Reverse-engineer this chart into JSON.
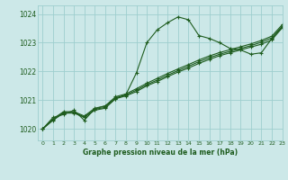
{
  "title": "Graphe pression niveau de la mer (hPa)",
  "bg_color": "#cce8e8",
  "grid_color": "#9ecece",
  "line_color": "#1e5c1e",
  "xlim": [
    -0.5,
    23
  ],
  "ylim": [
    1019.6,
    1024.3
  ],
  "yticks": [
    1020,
    1021,
    1022,
    1023,
    1024
  ],
  "xticks": [
    0,
    1,
    2,
    3,
    4,
    5,
    6,
    7,
    8,
    9,
    10,
    11,
    12,
    13,
    14,
    15,
    16,
    17,
    18,
    19,
    20,
    21,
    22,
    23
  ],
  "figsize": [
    3.2,
    2.0
  ],
  "dpi": 100,
  "series": [
    [
      1020.0,
      1020.4,
      1020.5,
      1020.65,
      1020.3,
      1020.7,
      1020.8,
      1021.05,
      1021.2,
      1021.95,
      1023.0,
      1023.45,
      1023.7,
      1023.9,
      1023.8,
      1023.25,
      1023.15,
      1023.0,
      1022.8,
      1022.75,
      1022.6,
      1022.65,
      1023.15,
      1023.55
    ],
    [
      1020.0,
      1020.3,
      1020.55,
      1020.55,
      1020.4,
      1020.65,
      1020.72,
      1021.05,
      1021.15,
      1021.3,
      1021.5,
      1021.65,
      1021.82,
      1021.98,
      1022.12,
      1022.28,
      1022.42,
      1022.55,
      1022.65,
      1022.75,
      1022.85,
      1022.95,
      1023.1,
      1023.52
    ],
    [
      1020.0,
      1020.32,
      1020.57,
      1020.57,
      1020.42,
      1020.68,
      1020.75,
      1021.08,
      1021.18,
      1021.35,
      1021.54,
      1021.7,
      1021.87,
      1022.03,
      1022.18,
      1022.34,
      1022.48,
      1022.6,
      1022.7,
      1022.8,
      1022.9,
      1023.02,
      1023.17,
      1023.58
    ],
    [
      1020.0,
      1020.35,
      1020.6,
      1020.6,
      1020.45,
      1020.72,
      1020.8,
      1021.12,
      1021.22,
      1021.4,
      1021.59,
      1021.76,
      1021.93,
      1022.09,
      1022.24,
      1022.4,
      1022.54,
      1022.66,
      1022.76,
      1022.86,
      1022.96,
      1023.08,
      1023.23,
      1023.63
    ]
  ]
}
